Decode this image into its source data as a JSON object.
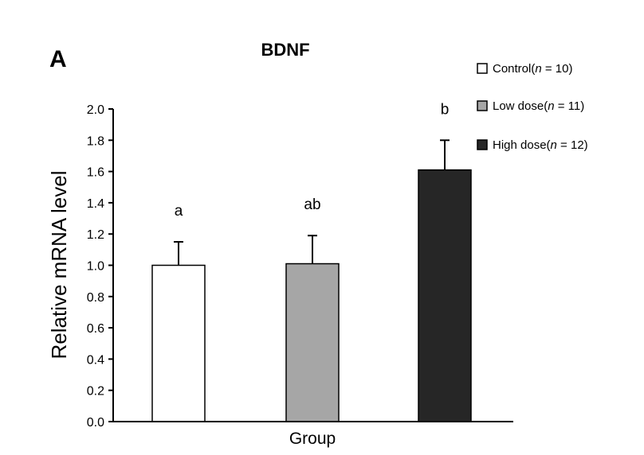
{
  "panel_letter": "A",
  "chart_data": {
    "type": "bar",
    "title": "BDNF",
    "xlabel": "Group",
    "ylabel": "Relative mRNA level",
    "ylim": [
      0,
      2.0
    ],
    "yticks": [
      "0.0",
      "0.2",
      "0.4",
      "0.6",
      "0.8",
      "1.0",
      "1.2",
      "1.4",
      "1.6",
      "1.8",
      "2.0"
    ],
    "grid": false,
    "legend_position": "top-right",
    "bars": [
      {
        "legend_label": "Control(",
        "legend_n": "n",
        "legend_rest": " = 10)",
        "value": 1.0,
        "error": 0.15,
        "significance": "a",
        "fill": "#ffffff"
      },
      {
        "legend_label": "Low dose(",
        "legend_n": "n",
        "legend_rest": " = 11)",
        "value": 1.01,
        "error": 0.18,
        "significance": "ab",
        "fill": "#a6a6a6"
      },
      {
        "legend_label": "High dose(",
        "legend_n": "n",
        "legend_rest": " = 12)",
        "value": 1.61,
        "error": 0.19,
        "significance": "b",
        "fill": "#262626"
      }
    ]
  }
}
